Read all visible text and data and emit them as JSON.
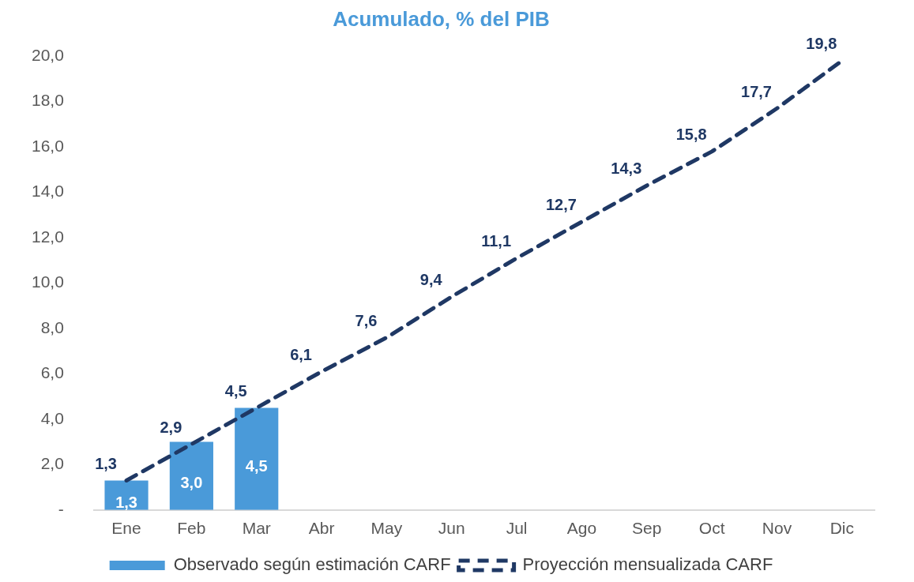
{
  "chart_data": {
    "type": "bar",
    "title": "Acumulado, % del PIB",
    "categories": [
      "Ene",
      "Feb",
      "Mar",
      "Abr",
      "May",
      "Jun",
      "Jul",
      "Ago",
      "Sep",
      "Oct",
      "Nov",
      "Dic"
    ],
    "series": [
      {
        "name": "Observado según estimación CARF",
        "color": "#4a9ad9",
        "values": [
          1.3,
          3.0,
          4.5,
          null,
          null,
          null,
          null,
          null,
          null,
          null,
          null,
          null
        ],
        "value_labels": [
          "1,3",
          "3,0",
          "4,5",
          null,
          null,
          null,
          null,
          null,
          null,
          null,
          null,
          null
        ]
      },
      {
        "name": "Proyección mensualizada CARF",
        "type": "line",
        "color": "#1f3864",
        "line_style": "dashed",
        "marker": "none",
        "values": [
          1.3,
          2.9,
          4.5,
          6.1,
          7.6,
          9.4,
          11.1,
          12.7,
          14.3,
          15.8,
          17.7,
          19.8
        ],
        "value_labels": [
          "1,3",
          "2,9",
          "4,5",
          "6,1",
          "7,6",
          "9,4",
          "11,1",
          "12,7",
          "14,3",
          "15,8",
          "17,7",
          "19,8"
        ]
      }
    ],
    "ylim": [
      0,
      20
    ],
    "yticks": [
      {
        "value": 0,
        "label": "-"
      },
      {
        "value": 2,
        "label": "2,0"
      },
      {
        "value": 4,
        "label": "4,0"
      },
      {
        "value": 6,
        "label": "6,0"
      },
      {
        "value": 8,
        "label": "8,0"
      },
      {
        "value": 10,
        "label": "10,0"
      },
      {
        "value": 12,
        "label": "12,0"
      },
      {
        "value": 14,
        "label": "14,0"
      },
      {
        "value": 16,
        "label": "16,0"
      },
      {
        "value": 18,
        "label": "18,0"
      },
      {
        "value": 20,
        "label": "20,0"
      }
    ],
    "grid": false,
    "legend": "bottom"
  }
}
